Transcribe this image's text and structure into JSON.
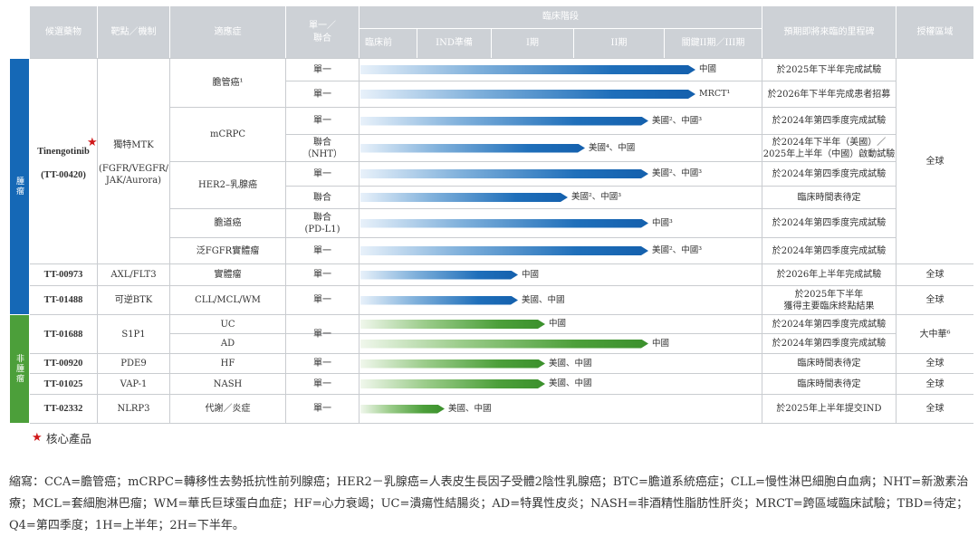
{
  "header": {
    "candidate": "候選藥物",
    "target": "靶點／機制",
    "indication": "適應症",
    "mode": "單一／\n聯合",
    "stage_title": "臨床階段",
    "stages": [
      "臨床前",
      "IND準備",
      "I期",
      "II期",
      "關鍵II期／III期"
    ],
    "milestone": "預期即將來臨的里程碑",
    "region": "授權區域"
  },
  "bands": {
    "oncology": "腫瘤",
    "non_oncology": "非腫瘤"
  },
  "drugs": [
    {
      "name": "Tinengotinib",
      "code": "(TT-00420)",
      "target": "獨特MTK\n\n(FGFR/VEGFR/\nJAK/Aurora)",
      "region": "全球"
    },
    {
      "name": "TT-00973",
      "target": "AXL/FLT3",
      "region": "全球"
    },
    {
      "name": "TT-01488",
      "target": "可逆BTK",
      "region": "全球"
    },
    {
      "name": "TT-01688",
      "target": "S1P1",
      "region": "大中華⁶"
    },
    {
      "name": "TT-00920",
      "target": "PDE9",
      "region": "全球"
    },
    {
      "name": "TT-01025",
      "target": "VAP-1",
      "region": "全球"
    },
    {
      "name": "TT-02332",
      "target": "NLRP3",
      "region": "全球"
    }
  ],
  "indications": [
    "膽管癌¹",
    "mCRPC",
    "HER2–乳腺癌",
    "膽道癌",
    "泛FGFR實體瘤",
    "實體瘤",
    "CLL/MCL/WM",
    "UC",
    "AD",
    "HF",
    "NASH",
    "代謝／炎症"
  ],
  "modes": {
    "single": "單一",
    "combo": "聯合",
    "combo_nht": "聯合\n（NHT）",
    "combo_pdl1": "聯合\n(PD-L1)"
  },
  "rows": [
    {
      "bar_label": "中國",
      "progress": 1.0,
      "color": "blue",
      "milestone": "於2025年下半年完成試驗"
    },
    {
      "bar_label": "MRCT¹",
      "progress": 1.0,
      "color": "blue",
      "milestone": "於2026年下半年完成患者招募"
    },
    {
      "bar_label": "美國²、中國³",
      "progress": 0.86,
      "color": "blue",
      "milestone": "於2024年第四季度完成試驗"
    },
    {
      "bar_label": "美國⁴、中國",
      "progress": 0.67,
      "color": "blue",
      "milestone": "於2024年下半年（美國）／\n2025年上半年（中國）啟動試驗"
    },
    {
      "bar_label": "美國²、中國³",
      "progress": 0.86,
      "color": "blue",
      "milestone": "於2024年第四季度完成試驗"
    },
    {
      "bar_label": "美國²、中國³",
      "progress": 0.62,
      "color": "blue",
      "milestone": "臨床時間表待定"
    },
    {
      "bar_label": "中國³",
      "progress": 0.86,
      "color": "blue",
      "milestone": "於2024年第四季度完成試驗"
    },
    {
      "bar_label": "美國²、中國³",
      "progress": 0.86,
      "color": "blue",
      "milestone": "於2024年第四季度完成試驗"
    },
    {
      "bar_label": "中國",
      "progress": 0.47,
      "color": "blue",
      "milestone": "於2026年上半年完成試驗"
    },
    {
      "bar_label": "美國、中國",
      "progress": 0.47,
      "color": "blue",
      "milestone": "於2025年下半年\n獲得主要臨床終點結果"
    },
    {
      "bar_label": "中國",
      "progress": 0.55,
      "color": "green",
      "milestone": "於2024年第四季度完成試驗"
    },
    {
      "bar_label": "中國",
      "progress": 0.86,
      "color": "green",
      "milestone": "於2024年第四季度完成試驗"
    },
    {
      "bar_label": "美國、中國",
      "progress": 0.55,
      "color": "green",
      "milestone": "臨床時間表待定"
    },
    {
      "bar_label": "美國、中國",
      "progress": 0.55,
      "color": "green",
      "milestone": "臨床時間表待定"
    },
    {
      "bar_label": "美國、中國",
      "progress": 0.25,
      "color": "green",
      "milestone": "於2025年上半年提交IND"
    }
  ],
  "legend": {
    "star": "★",
    "core_product": "核心產品"
  },
  "footnote": "縮寫：CCA=膽管癌；mCRPC=轉移性去勢抵抗性前列腺癌；HER2－乳腺癌=人表皮生長因子受體2陰性乳腺癌；BTC=膽道系統癌症；CLL=慢性淋巴細胞白血病；NHT=新激素治療；MCL=套細胞淋巴瘤；WM=華氏巨球蛋白血症；HF=心力衰竭；UC=潰瘍性結腸炎；AD=特異性皮炎；NASH=非酒精性脂肪性肝炎；MRCT=跨區域臨床試驗；TBD=待定；Q4=第四季度；1H=上半年；2H=下半年。",
  "colors": {
    "blue": "#1460ad",
    "green": "#3b902c",
    "header": "#cdd1d6",
    "star": "#d0191a"
  }
}
